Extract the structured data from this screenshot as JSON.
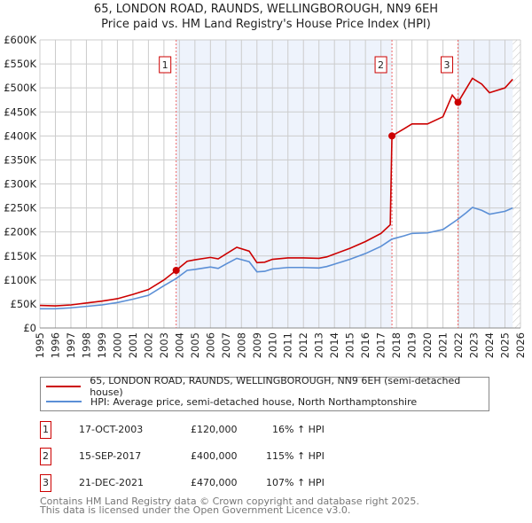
{
  "chart_data": {
    "type": "line",
    "title": "65, LONDON ROAD, RAUNDS, WELLINGBOROUGH, NN9 6EH",
    "subtitle": "Price paid vs. HM Land Registry's House Price Index (HPI)",
    "xlim": [
      1995,
      2026
    ],
    "ylim": [
      0,
      600000
    ],
    "xticks": [
      "1995",
      "1996",
      "1997",
      "1998",
      "1999",
      "2000",
      "2001",
      "2002",
      "2003",
      "2004",
      "2005",
      "2006",
      "2007",
      "2008",
      "2009",
      "2010",
      "2011",
      "2012",
      "2013",
      "2014",
      "2015",
      "2016",
      "2017",
      "2018",
      "2019",
      "2020",
      "2021",
      "2022",
      "2023",
      "2024",
      "2025",
      "2026"
    ],
    "yticks": [
      "£0",
      "£50K",
      "£100K",
      "£150K",
      "£200K",
      "£250K",
      "£300K",
      "£350K",
      "£400K",
      "£450K",
      "£500K",
      "£550K",
      "£600K"
    ],
    "grid": true,
    "series": [
      {
        "name": "65, LONDON ROAD, RAUNDS, WELLINGBOROUGH, NN9 6EH (semi-detached house)",
        "color": "#cc0000",
        "x": [
          1995,
          1996,
          1997,
          1998,
          1999,
          2000,
          2001,
          2002,
          2003,
          2003.79,
          2004.5,
          2005,
          2006,
          2006.5,
          2007,
          2007.7,
          2008.5,
          2009,
          2009.5,
          2010,
          2011,
          2012,
          2013,
          2013.5,
          2014,
          2015,
          2016,
          2017,
          2017.6,
          2017.71,
          2018.5,
          2019,
          2020,
          2021,
          2021.6,
          2021.97,
          2022.9,
          2023.5,
          2024,
          2025,
          2025.5
        ],
        "y": [
          47000,
          46000,
          48000,
          52000,
          56000,
          61000,
          70000,
          80000,
          100000,
          120000,
          139000,
          142000,
          147000,
          144000,
          154000,
          168000,
          160000,
          136000,
          137000,
          143000,
          146000,
          146000,
          145000,
          148000,
          154000,
          166000,
          180000,
          197000,
          215000,
          400000,
          415000,
          425000,
          425000,
          440000,
          485000,
          470000,
          520000,
          508000,
          490000,
          500000,
          518000
        ]
      },
      {
        "name": "HPI: Average price, semi-detached house, North Northamptonshire",
        "color": "#5b8fd6",
        "x": [
          1995,
          1996,
          1997,
          1998,
          1999,
          2000,
          2001,
          2002,
          2003,
          2003.79,
          2004.5,
          2005,
          2006,
          2006.5,
          2007,
          2007.7,
          2008.5,
          2009,
          2009.5,
          2010,
          2011,
          2012,
          2013,
          2013.5,
          2014,
          2015,
          2016,
          2017,
          2017.7,
          2018.5,
          2019,
          2020,
          2021,
          2021.9,
          2022.5,
          2022.9,
          2023.5,
          2024,
          2025,
          2025.5
        ],
        "y": [
          40000,
          40000,
          42000,
          45000,
          48000,
          53000,
          60000,
          68000,
          88000,
          103000,
          120000,
          122000,
          127000,
          124000,
          133000,
          145000,
          138000,
          117000,
          118000,
          123000,
          126000,
          126000,
          125000,
          128000,
          133000,
          143000,
          155000,
          170000,
          185000,
          192000,
          197000,
          198000,
          205000,
          225000,
          240000,
          251000,
          245000,
          237000,
          243000,
          250000
        ]
      }
    ],
    "sales": [
      {
        "label": "1",
        "x": 2003.79,
        "y": 120000,
        "date": "17-OCT-2003",
        "price": "£120,000",
        "hpi": "16% ↑ HPI"
      },
      {
        "label": "2",
        "x": 2017.71,
        "y": 400000,
        "date": "15-SEP-2017",
        "price": "£400,000",
        "hpi": "115% ↑ HPI"
      },
      {
        "label": "3",
        "x": 2021.97,
        "y": 470000,
        "date": "21-DEC-2021",
        "price": "£470,000",
        "hpi": "107% ↑ HPI"
      }
    ],
    "legend_placement": "bottom"
  },
  "footer": {
    "line1": "Contains HM Land Registry data © Crown copyright and database right 2025.",
    "line2": "This data is licensed under the Open Government Licence v3.0."
  }
}
